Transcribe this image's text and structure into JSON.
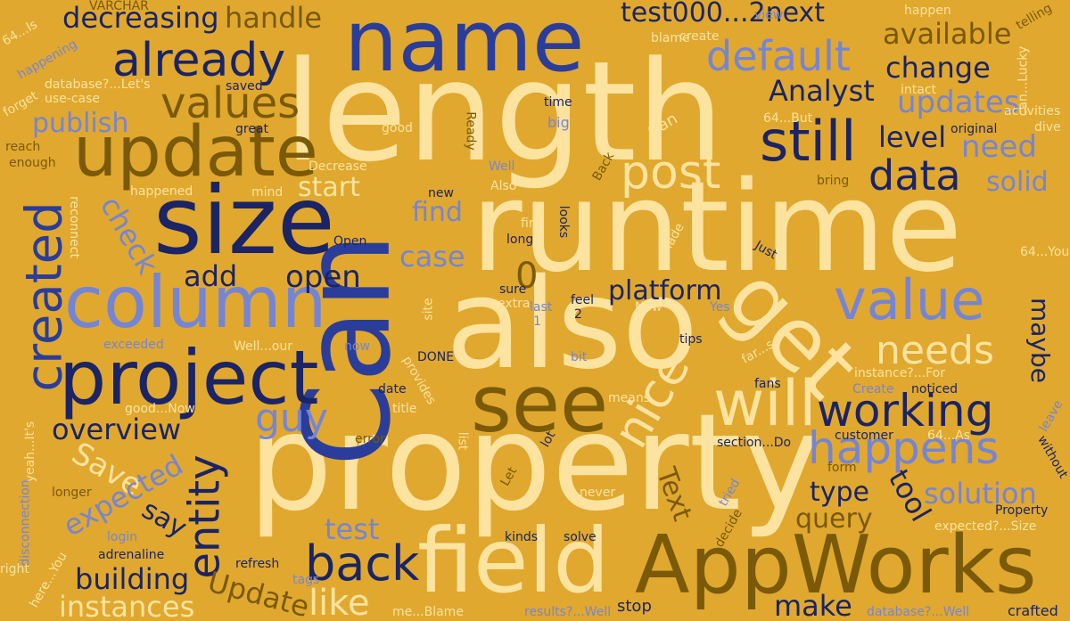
{
  "colors": {
    "background": "#e0a82e",
    "cream": "#fde3a0",
    "olive": "#7a5a08",
    "navy": "#1a2466",
    "royal": "#2a3d9a",
    "periwinkle": "#7585d6"
  },
  "words": [
    {
      "text": "length"
    },
    {
      "text": "runtime"
    },
    {
      "text": "property"
    },
    {
      "text": "Can"
    },
    {
      "text": "also"
    },
    {
      "text": "name"
    },
    {
      "text": "size"
    },
    {
      "text": "field"
    },
    {
      "text": "AppWorks"
    },
    {
      "text": "project"
    },
    {
      "text": "update"
    },
    {
      "text": "column"
    },
    {
      "text": "get"
    },
    {
      "text": "see"
    },
    {
      "text": "value"
    },
    {
      "text": "already"
    },
    {
      "text": "still"
    },
    {
      "text": "values"
    },
    {
      "text": "post"
    },
    {
      "text": "will"
    },
    {
      "text": "created"
    },
    {
      "text": "default"
    },
    {
      "text": "data"
    },
    {
      "text": "nice"
    },
    {
      "text": "needs"
    },
    {
      "text": "working"
    },
    {
      "text": "happens"
    },
    {
      "text": "back"
    },
    {
      "text": "entity"
    },
    {
      "text": "like"
    },
    {
      "text": "guy"
    },
    {
      "text": "test000...2next"
    },
    {
      "text": "decreasing"
    },
    {
      "text": "handle"
    },
    {
      "text": "available"
    },
    {
      "text": "change"
    },
    {
      "text": "Analyst"
    },
    {
      "text": "updates"
    },
    {
      "text": "level"
    },
    {
      "text": "need"
    },
    {
      "text": "solid"
    },
    {
      "text": "publish"
    },
    {
      "text": "check"
    },
    {
      "text": "start"
    },
    {
      "text": "find"
    },
    {
      "text": "case"
    },
    {
      "text": "0"
    },
    {
      "text": "add"
    },
    {
      "text": "open"
    },
    {
      "text": "platform"
    },
    {
      "text": "maybe"
    },
    {
      "text": "overview"
    },
    {
      "text": "Save"
    },
    {
      "text": "expected"
    },
    {
      "text": "say"
    },
    {
      "text": "Text"
    },
    {
      "text": "type"
    },
    {
      "text": "tool"
    },
    {
      "text": "solution"
    },
    {
      "text": "query"
    },
    {
      "text": "test"
    },
    {
      "text": "building"
    },
    {
      "text": "Update"
    },
    {
      "text": "instances"
    },
    {
      "text": "make"
    },
    {
      "text": "stop"
    },
    {
      "text": "VARCHAR"
    },
    {
      "text": "64...Is"
    },
    {
      "text": "happening"
    },
    {
      "text": "database?...Let's"
    },
    {
      "text": "saved"
    },
    {
      "text": "use-case"
    },
    {
      "text": "forget"
    },
    {
      "text": "great"
    },
    {
      "text": "reach"
    },
    {
      "text": "enough"
    },
    {
      "text": "good"
    },
    {
      "text": "Ready"
    },
    {
      "text": "time"
    },
    {
      "text": "big"
    },
    {
      "text": "Can"
    },
    {
      "text": "64...But"
    },
    {
      "text": "original"
    },
    {
      "text": "activities"
    },
    {
      "text": "dive"
    },
    {
      "text": "can...Lucky"
    },
    {
      "text": "intact"
    },
    {
      "text": "view"
    },
    {
      "text": "create"
    },
    {
      "text": "blame"
    },
    {
      "text": "happen"
    },
    {
      "text": "telling"
    },
    {
      "text": "Decrease"
    },
    {
      "text": "Well"
    },
    {
      "text": "Also"
    },
    {
      "text": "Back"
    },
    {
      "text": "bring"
    },
    {
      "text": "mind"
    },
    {
      "text": "happened"
    },
    {
      "text": "new"
    },
    {
      "text": "reconnect"
    },
    {
      "text": "Open"
    },
    {
      "text": "fine"
    },
    {
      "text": "long"
    },
    {
      "text": "looks"
    },
    {
      "text": "made"
    },
    {
      "text": "Just"
    },
    {
      "text": "64...You"
    },
    {
      "text": "sure"
    },
    {
      "text": "extra"
    },
    {
      "text": "site"
    },
    {
      "text": "last"
    },
    {
      "text": "feel"
    },
    {
      "text": "1"
    },
    {
      "text": "2"
    },
    {
      "text": "Now"
    },
    {
      "text": "Yes"
    },
    {
      "text": "exceeded"
    },
    {
      "text": "Well...our"
    },
    {
      "text": "now"
    },
    {
      "text": "provides"
    },
    {
      "text": "DONE"
    },
    {
      "text": "bit"
    },
    {
      "text": "tips"
    },
    {
      "text": "far...so"
    },
    {
      "text": "instance?...For"
    },
    {
      "text": "fans"
    },
    {
      "text": "Create"
    },
    {
      "text": "noticed"
    },
    {
      "text": "means"
    },
    {
      "text": "date"
    },
    {
      "text": "title"
    },
    {
      "text": "good...Now"
    },
    {
      "text": "yeah...It's"
    },
    {
      "text": "error"
    },
    {
      "text": "lot"
    },
    {
      "text": "list"
    },
    {
      "text": "section...Do"
    },
    {
      "text": "customer"
    },
    {
      "text": "64...As"
    },
    {
      "text": "leave"
    },
    {
      "text": "without"
    },
    {
      "text": "disconnection"
    },
    {
      "text": "longer"
    },
    {
      "text": "Let"
    },
    {
      "text": "never"
    },
    {
      "text": "tried"
    },
    {
      "text": "form"
    },
    {
      "text": "expected?...Size"
    },
    {
      "text": "Property"
    },
    {
      "text": "login"
    },
    {
      "text": "kinds"
    },
    {
      "text": "solve"
    },
    {
      "text": "decide"
    },
    {
      "text": "adrenaline"
    },
    {
      "text": "right"
    },
    {
      "text": "here...You"
    },
    {
      "text": "refresh"
    },
    {
      "text": "tags"
    },
    {
      "text": "me...Blame"
    },
    {
      "text": "results?...Well"
    },
    {
      "text": "database?...Well"
    },
    {
      "text": "crafted"
    }
  ]
}
